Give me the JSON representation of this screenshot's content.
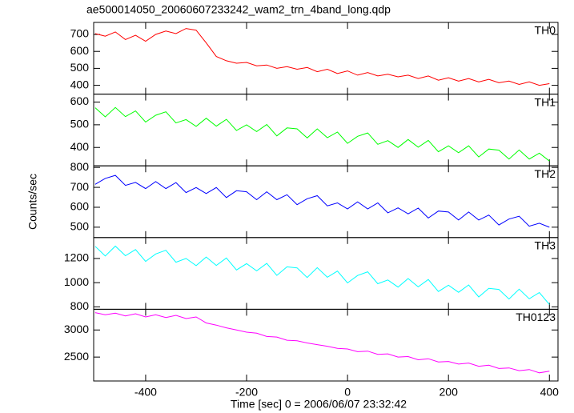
{
  "figure": {
    "title": "ae500014050_20060607233242_wam2_trn_4band_long.qdp",
    "xlabel": "Time [sec] 0 = 2006/06/07 23:32:42",
    "ylabel": "Counts/sec"
  },
  "chart_data": [
    {
      "type": "line",
      "xlim": [
        -503,
        417
      ],
      "xticks": [
        -400,
        -200,
        0,
        200,
        400
      ],
      "ylim": [
        348,
        771
      ],
      "yticks": [
        400,
        500,
        600,
        700
      ],
      "x": [
        -500,
        -480,
        -460,
        -440,
        -420,
        -400,
        -380,
        -360,
        -340,
        -320,
        -300,
        -280,
        -260,
        -240,
        -220,
        -200,
        -180,
        -160,
        -140,
        -120,
        -100,
        -80,
        -60,
        -40,
        -20,
        0,
        20,
        40,
        60,
        80,
        100,
        120,
        140,
        160,
        180,
        200,
        220,
        240,
        260,
        280,
        300,
        320,
        340,
        360,
        380,
        400
      ],
      "series": [
        {
          "name": "TH0",
          "color": "#ff0000",
          "values": [
            705,
            690,
            715,
            670,
            695,
            660,
            700,
            720,
            705,
            735,
            725,
            650,
            570,
            545,
            530,
            535,
            515,
            520,
            500,
            510,
            495,
            505,
            480,
            495,
            470,
            485,
            460,
            475,
            455,
            465,
            450,
            460,
            440,
            455,
            430,
            445,
            425,
            440,
            420,
            435,
            415,
            425,
            405,
            420,
            400,
            410
          ]
        }
      ]
    },
    {
      "type": "line",
      "xlim": [
        -503,
        417
      ],
      "xticks": [
        -400,
        -200,
        0,
        200,
        400
      ],
      "ylim": [
        319,
        635
      ],
      "yticks": [
        400,
        500,
        600
      ],
      "x": [
        -500,
        -480,
        -460,
        -440,
        -420,
        -400,
        -380,
        -360,
        -340,
        -320,
        -300,
        -280,
        -260,
        -240,
        -220,
        -200,
        -180,
        -160,
        -140,
        -120,
        -100,
        -80,
        -60,
        -40,
        -20,
        0,
        20,
        40,
        60,
        80,
        100,
        120,
        140,
        160,
        180,
        200,
        220,
        240,
        260,
        280,
        300,
        320,
        340,
        360,
        380,
        400
      ],
      "series": [
        {
          "name": "TH1",
          "color": "#00ff00",
          "values": [
            575,
            535,
            576,
            536,
            561,
            512,
            542,
            557,
            508,
            523,
            493,
            529,
            494,
            524,
            475,
            500,
            470,
            501,
            451,
            486,
            482,
            442,
            482,
            443,
            468,
            418,
            449,
            464,
            414,
            430,
            400,
            435,
            401,
            431,
            381,
            407,
            377,
            407,
            358,
            393,
            388,
            349,
            389,
            349,
            375,
            340
          ]
        }
      ]
    },
    {
      "type": "line",
      "xlim": [
        -503,
        417
      ],
      "xticks": [
        -400,
        -200,
        0,
        200,
        400
      ],
      "ylim": [
        448,
        808
      ],
      "yticks": [
        500,
        600,
        700,
        800
      ],
      "x": [
        -500,
        -480,
        -460,
        -440,
        -420,
        -400,
        -380,
        -360,
        -340,
        -320,
        -300,
        -280,
        -260,
        -240,
        -220,
        -200,
        -180,
        -160,
        -140,
        -120,
        -100,
        -80,
        -60,
        -40,
        -20,
        0,
        20,
        40,
        60,
        80,
        100,
        120,
        140,
        160,
        180,
        200,
        220,
        240,
        260,
        280,
        300,
        320,
        340,
        360,
        380,
        400
      ],
      "series": [
        {
          "name": "TH2",
          "color": "#0000ff",
          "values": [
            715,
            745,
            760,
            710,
            725,
            694,
            729,
            694,
            724,
            674,
            699,
            669,
            699,
            649,
            683,
            678,
            638,
            678,
            638,
            663,
            613,
            643,
            658,
            607,
            622,
            592,
            627,
            592,
            622,
            572,
            597,
            567,
            596,
            546,
            581,
            576,
            536,
            576,
            536,
            561,
            511,
            541,
            555,
            505,
            520,
            500
          ]
        }
      ]
    },
    {
      "type": "line",
      "xlim": [
        -503,
        417
      ],
      "xticks": [
        -400,
        -200,
        0,
        200,
        400
      ],
      "ylim": [
        780,
        1373
      ],
      "yticks": [
        800,
        1000,
        1200
      ],
      "x": [
        -500,
        -480,
        -460,
        -440,
        -420,
        -400,
        -380,
        -360,
        -340,
        -320,
        -300,
        -280,
        -260,
        -240,
        -220,
        -200,
        -180,
        -160,
        -140,
        -120,
        -100,
        -80,
        -60,
        -40,
        -20,
        0,
        20,
        40,
        60,
        80,
        100,
        120,
        140,
        160,
        180,
        200,
        220,
        240,
        260,
        280,
        300,
        320,
        340,
        360,
        380,
        400
      ],
      "series": [
        {
          "name": "TH3",
          "color": "#00ffff",
          "values": [
            1300,
            1221,
            1302,
            1223,
            1274,
            1176,
            1237,
            1268,
            1169,
            1200,
            1141,
            1212,
            1143,
            1204,
            1105,
            1157,
            1098,
            1159,
            1060,
            1131,
            1122,
            1043,
            1124,
            1045,
            1096,
            998,
            1059,
            1090,
            991,
            1022,
            963,
            1034,
            965,
            1026,
            927,
            979,
            920,
            981,
            882,
            953,
            944,
            865,
            946,
            867,
            918,
            820
          ]
        }
      ]
    },
    {
      "type": "line",
      "xlim": [
        -503,
        417
      ],
      "xticks": [
        -400,
        -200,
        0,
        200,
        400
      ],
      "ylim": [
        2059,
        3382
      ],
      "yticks": [
        2500,
        3000
      ],
      "x": [
        -500,
        -480,
        -460,
        -440,
        -420,
        -400,
        -380,
        -360,
        -340,
        -320,
        -300,
        -280,
        -260,
        -240,
        -220,
        -200,
        -180,
        -160,
        -140,
        -120,
        -100,
        -80,
        -60,
        -40,
        -20,
        0,
        20,
        40,
        60,
        80,
        100,
        120,
        140,
        160,
        180,
        200,
        220,
        240,
        260,
        280,
        300,
        320,
        340,
        360,
        380,
        400
      ],
      "series": [
        {
          "name": "TH0123",
          "color": "#ff00ff",
          "values": [
            3320,
            3280,
            3310,
            3260,
            3300,
            3240,
            3280,
            3230,
            3270,
            3210,
            3240,
            3130,
            3090,
            3040,
            3000,
            2960,
            2940,
            2880,
            2870,
            2810,
            2800,
            2760,
            2730,
            2700,
            2660,
            2650,
            2600,
            2610,
            2550,
            2560,
            2500,
            2510,
            2450,
            2470,
            2410,
            2420,
            2370,
            2390,
            2330,
            2350,
            2290,
            2300,
            2250,
            2270,
            2210,
            2240
          ]
        }
      ]
    }
  ]
}
